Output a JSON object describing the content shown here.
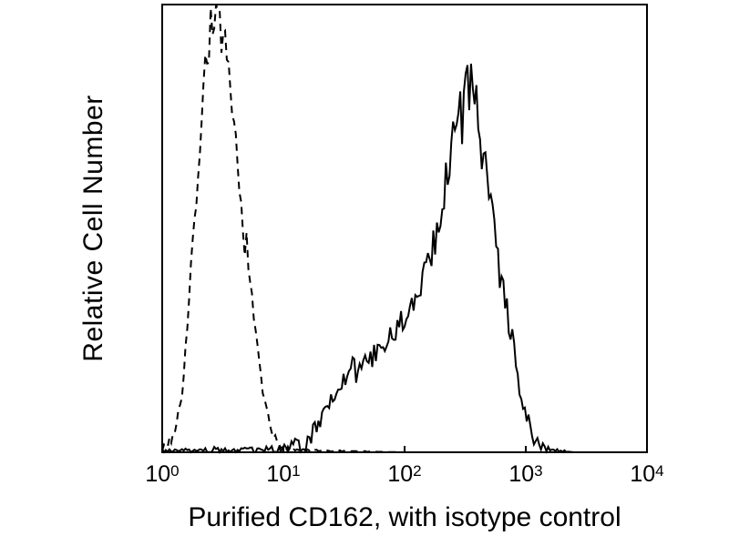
{
  "figure": {
    "background": "#ffffff",
    "ink_color": "#000000"
  },
  "chart_data": {
    "type": "line",
    "subtype": "flow-cytometry-histogram",
    "title": "",
    "xlabel": "Purified CD162, with isotype control",
    "ylabel": "Relative Cell Number",
    "x_scale": "log10",
    "x_range": [
      1,
      10000
    ],
    "x_range_log": [
      0,
      4
    ],
    "ylim": [
      0,
      1
    ],
    "grid": false,
    "legend": "none",
    "x_ticks": [
      {
        "base": "10",
        "exp": "0"
      },
      {
        "base": "10",
        "exp": "1"
      },
      {
        "base": "10",
        "exp": "2"
      },
      {
        "base": "10",
        "exp": "3"
      },
      {
        "base": "10",
        "exp": "4"
      }
    ],
    "noise": {
      "seed": 7,
      "bins": 270
    },
    "series": [
      {
        "name": "isotype control",
        "line_style": "dashed",
        "color": "#000000",
        "peak_x_approx": 3,
        "peak_height_frac": 0.99,
        "noise_rel": 0.06,
        "noise_abs": 0.015,
        "points_logx_height": [
          [
            0.0,
            0.01
          ],
          [
            0.05,
            0.02
          ],
          [
            0.1,
            0.045
          ],
          [
            0.15,
            0.1
          ],
          [
            0.2,
            0.25
          ],
          [
            0.25,
            0.45
          ],
          [
            0.3,
            0.65
          ],
          [
            0.35,
            0.85
          ],
          [
            0.4,
            0.95
          ],
          [
            0.44,
            0.99
          ],
          [
            0.48,
            0.95
          ],
          [
            0.52,
            0.88
          ],
          [
            0.56,
            0.8
          ],
          [
            0.6,
            0.7
          ],
          [
            0.63,
            0.6
          ],
          [
            0.66,
            0.52
          ],
          [
            0.7,
            0.45
          ],
          [
            0.73,
            0.36
          ],
          [
            0.76,
            0.28
          ],
          [
            0.8,
            0.2
          ],
          [
            0.84,
            0.12
          ],
          [
            0.88,
            0.06
          ],
          [
            0.92,
            0.03
          ],
          [
            1.0,
            0.01
          ],
          [
            1.1,
            0.005
          ],
          [
            1.3,
            0.003
          ],
          [
            1.6,
            0.002
          ],
          [
            2.0,
            0.0
          ],
          [
            4.0,
            0.0
          ]
        ]
      },
      {
        "name": "Purified CD162",
        "line_style": "solid",
        "color": "#000000",
        "peak_x_approx": 350,
        "peak_height_frac": 0.81,
        "noise_rel": 0.09,
        "noise_abs": 0.022,
        "points_logx_height": [
          [
            0.0,
            0.004
          ],
          [
            0.2,
            0.004
          ],
          [
            0.4,
            0.006
          ],
          [
            0.6,
            0.005
          ],
          [
            0.8,
            0.006
          ],
          [
            1.0,
            0.008
          ],
          [
            1.1,
            0.015
          ],
          [
            1.2,
            0.03
          ],
          [
            1.3,
            0.07
          ],
          [
            1.4,
            0.12
          ],
          [
            1.5,
            0.16
          ],
          [
            1.55,
            0.19
          ],
          [
            1.6,
            0.18
          ],
          [
            1.7,
            0.21
          ],
          [
            1.8,
            0.22
          ],
          [
            1.9,
            0.26
          ],
          [
            2.0,
            0.3
          ],
          [
            2.1,
            0.35
          ],
          [
            2.2,
            0.43
          ],
          [
            2.3,
            0.54
          ],
          [
            2.4,
            0.68
          ],
          [
            2.48,
            0.78
          ],
          [
            2.53,
            0.81
          ],
          [
            2.58,
            0.76
          ],
          [
            2.65,
            0.66
          ],
          [
            2.7,
            0.58
          ],
          [
            2.75,
            0.48
          ],
          [
            2.8,
            0.4
          ],
          [
            2.85,
            0.3
          ],
          [
            2.9,
            0.22
          ],
          [
            2.95,
            0.14
          ],
          [
            3.0,
            0.08
          ],
          [
            3.05,
            0.04
          ],
          [
            3.1,
            0.015
          ],
          [
            3.2,
            0.005
          ],
          [
            3.4,
            0.0
          ],
          [
            4.0,
            0.0
          ]
        ]
      }
    ]
  }
}
